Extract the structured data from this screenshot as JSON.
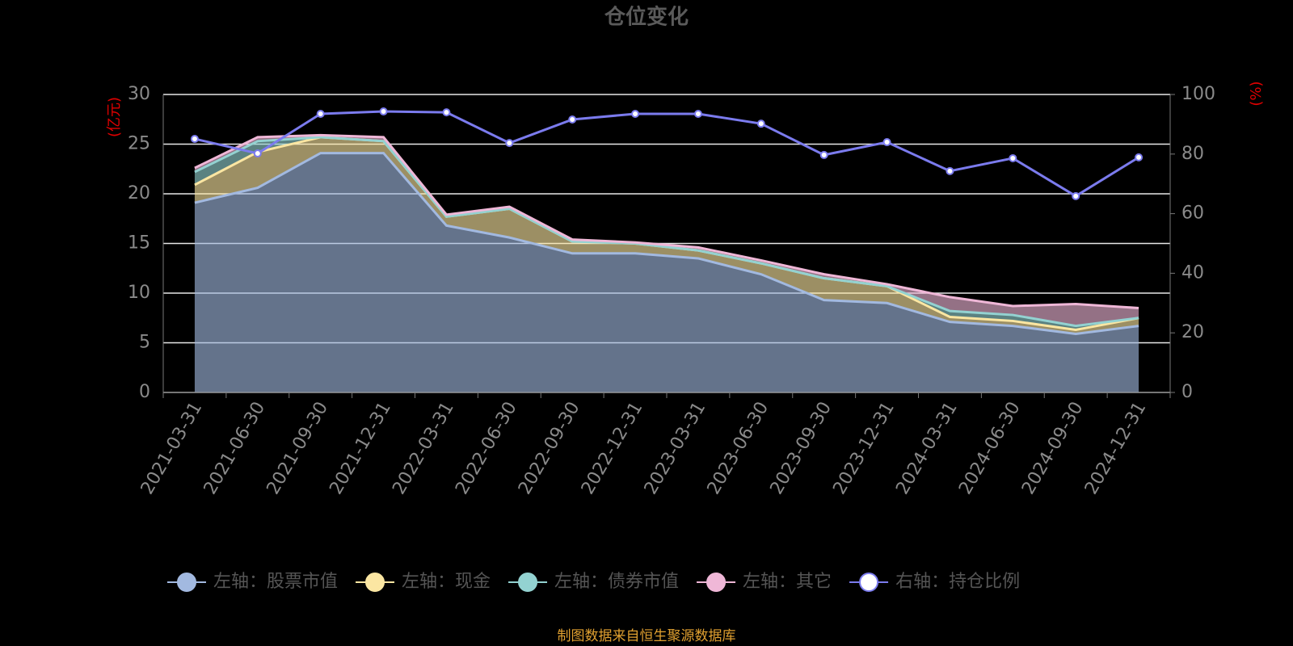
{
  "chart_data": {
    "type": "area",
    "title": "仓位变化",
    "y_label": "(亿元)",
    "y2_label": "(%)",
    "source": "制图数据来自恒生聚源数据库",
    "categories": [
      "2021-03-31",
      "2021-06-30",
      "2021-09-30",
      "2021-12-31",
      "2022-03-31",
      "2022-06-30",
      "2022-09-30",
      "2022-12-31",
      "2023-03-31",
      "2023-06-30",
      "2023-09-30",
      "2023-12-31",
      "2024-03-31",
      "2024-06-30",
      "2024-09-30",
      "2024-12-31"
    ],
    "series": [
      {
        "name": "左轴：股票市值",
        "type": "area",
        "color": "#a2b9e0",
        "values": [
          19.1,
          20.6,
          24.1,
          24.1,
          16.8,
          15.6,
          14.0,
          14.0,
          13.5,
          11.9,
          9.3,
          9.0,
          7.1,
          6.7,
          5.9,
          6.7
        ]
      },
      {
        "name": "左轴：现金",
        "type": "area",
        "color": "#fbe6a2",
        "values": [
          1.8,
          3.6,
          1.6,
          1.2,
          0.9,
          2.9,
          1.2,
          1.0,
          0.8,
          1.1,
          2.2,
          1.7,
          0.5,
          0.5,
          0.4,
          0.8
        ]
      },
      {
        "name": "左轴：债券市值",
        "type": "area",
        "color": "#93d2d1",
        "values": [
          1.3,
          1.1,
          0,
          0,
          0,
          0,
          0,
          0,
          0,
          0,
          0,
          0,
          0.6,
          0.6,
          0.4,
          0
        ]
      },
      {
        "name": "左轴：其它",
        "type": "area",
        "color": "#efb7d7",
        "values": [
          0.4,
          0.4,
          0.2,
          0.4,
          0.2,
          0.2,
          0.2,
          0.1,
          0.3,
          0.3,
          0.4,
          0.2,
          1.4,
          0.9,
          2.2,
          1.0
        ]
      },
      {
        "name": "右轴：持仓比例",
        "type": "line",
        "axis": "y2",
        "color": "#7b7bee",
        "values": [
          85.1,
          80.2,
          93.5,
          94.3,
          94.0,
          83.7,
          91.6,
          93.5,
          93.5,
          90.2,
          79.7,
          84.0,
          74.3,
          78.6,
          65.9,
          78.9
        ]
      }
    ],
    "ylim": [
      0,
      30
    ],
    "yticks": [
      0,
      5,
      10,
      15,
      20,
      25,
      30
    ],
    "y2lim": [
      0,
      100
    ],
    "y2ticks": [
      0,
      20,
      40,
      60,
      80,
      100
    ],
    "grid": true,
    "legend": "bottom"
  }
}
